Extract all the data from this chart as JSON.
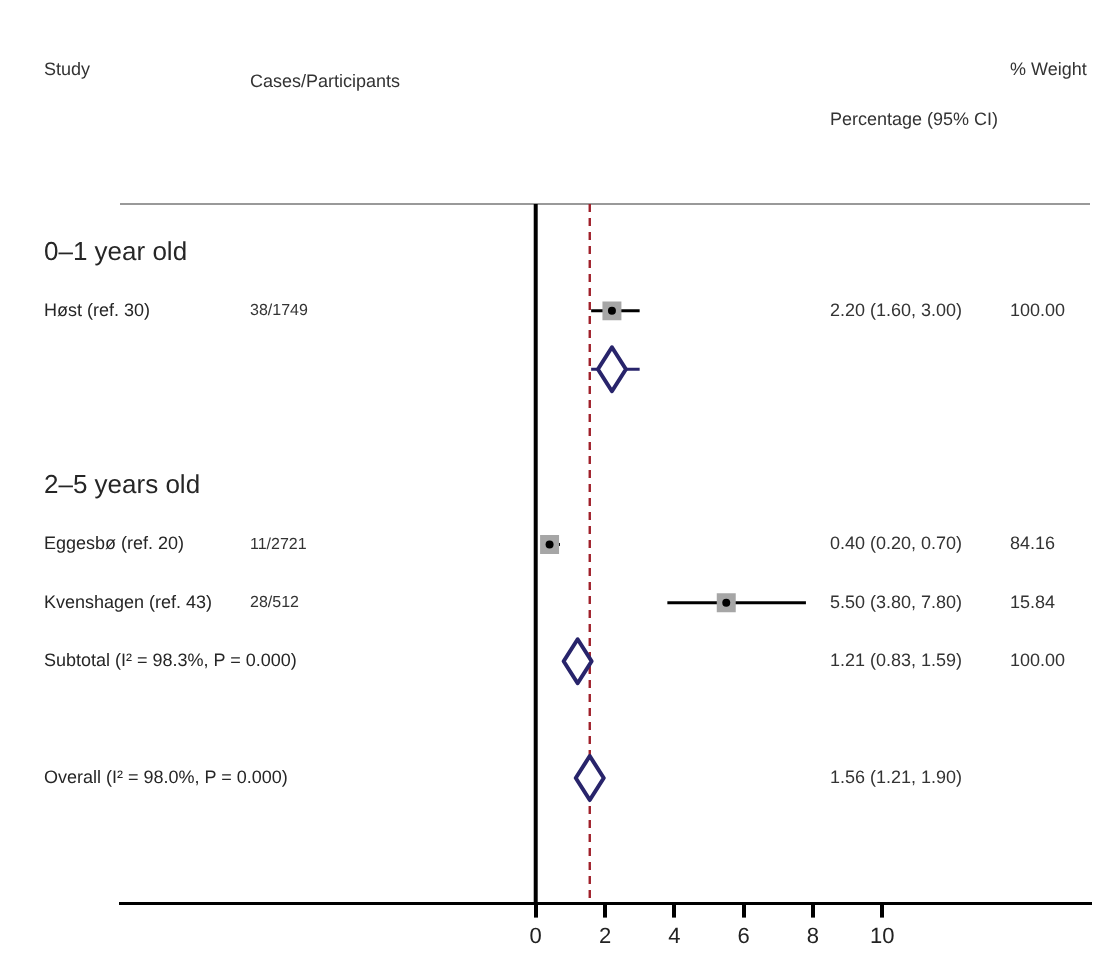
{
  "chart_data": {
    "type": "scatter",
    "orientation": "horizontal",
    "categories": [
      "0–1 year old",
      "Høst (ref. 30)",
      null,
      null,
      "2–5 years old",
      "Eggesbø (ref. 20)",
      "Kvenshagen (ref. 43)",
      "Subtotal (I² = 98.3%, P = 0.000)",
      null,
      "Overall (I² = 98.0%, P = 0.000)"
    ],
    "series": [
      {
        "color": "#a6a6a6",
        "marker": "square",
        "values": [
          null,
          2.2,
          null,
          null,
          null,
          0.4,
          5.5,
          null,
          null,
          null
        ],
        "errors": [
          null,
          [
            1.6,
            3.0
          ],
          null,
          null,
          null,
          [
            0.2,
            0.7
          ],
          [
            3.8,
            7.8
          ],
          null,
          null,
          null
        ]
      },
      {
        "color": "#28246b",
        "marker": "diamond",
        "values": [
          null,
          null,
          2.2,
          null,
          null,
          null,
          null,
          1.21,
          null,
          1.56
        ],
        "errors": [
          null,
          null,
          [
            1.6,
            3.0
          ],
          null,
          null,
          null,
          null,
          [
            0.83,
            1.59
          ],
          null,
          [
            1.21,
            1.9
          ]
        ]
      }
    ],
    "xlim": [
      -12,
      16
    ],
    "xticks": [
      0,
      2,
      4,
      6,
      8,
      10
    ],
    "ref_lines": [
      {
        "axis": "x",
        "value": 0,
        "color": "#000000"
      },
      {
        "axis": "x",
        "value": 1.56,
        "color": "#a0202a",
        "line_style": "dashed"
      }
    ],
    "annotations": [
      "Study",
      "Cases/Participants",
      "Percentage (95% CI)",
      "% Weight",
      "38/1749",
      "2.20 (1.60, 3.00)",
      "100.00",
      "11/2721",
      "0.40 (0.20, 0.70)",
      "84.16",
      "28/512",
      "5.50 (3.80, 7.80)",
      "15.84",
      "1.21 (0.83, 1.59)",
      "100.00",
      "1.56 (1.21, 1.90)"
    ],
    "grid": false,
    "legend": false
  }
}
